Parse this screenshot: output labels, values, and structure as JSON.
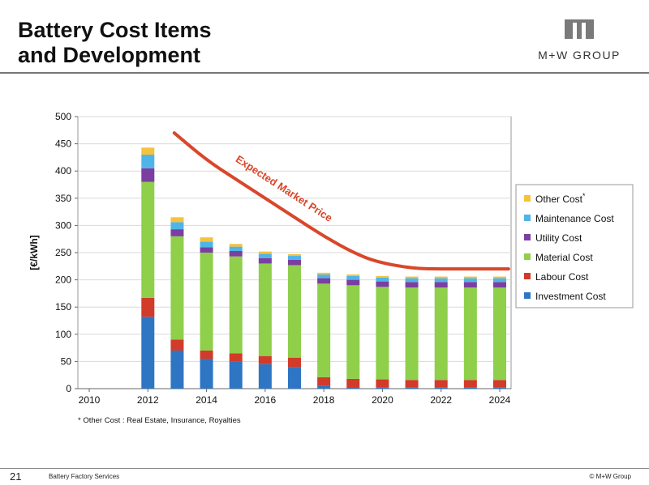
{
  "slide": {
    "title_line1": "Battery Cost Items",
    "title_line2": "and Development",
    "logo_text": "M+W GROUP",
    "footnote": "* Other Cost : Real Estate, Insurance, Royalties",
    "page_number": "21",
    "footer_left": "Battery Factory Services",
    "footer_right": "© M+W Group"
  },
  "chart_data": {
    "type": "bar",
    "stacked": true,
    "ylabel": "[€/kWh]",
    "xlabel": "",
    "ylim": [
      0,
      500
    ],
    "yticks": [
      0,
      50,
      100,
      150,
      200,
      250,
      300,
      350,
      400,
      450,
      500
    ],
    "xlim": [
      2010,
      2024
    ],
    "xticks": [
      2010,
      2012,
      2014,
      2016,
      2018,
      2020,
      2022,
      2024
    ],
    "grid": true,
    "legend_position": "right",
    "x": [
      2012,
      2013,
      2014,
      2015,
      2016,
      2017,
      2018,
      2019,
      2020,
      2021,
      2022,
      2023,
      2024
    ],
    "series": [
      {
        "name": "Investment Cost",
        "color": "#2e75c4",
        "values": [
          132,
          70,
          55,
          50,
          45,
          40,
          5,
          3,
          2,
          2,
          2,
          2,
          2
        ]
      },
      {
        "name": "Labour Cost",
        "color": "#d23a2a",
        "values": [
          35,
          20,
          15,
          15,
          15,
          17,
          16,
          15,
          15,
          14,
          14,
          14,
          14
        ]
      },
      {
        "name": "Material Cost",
        "color": "#8fcf4a",
        "values": [
          213,
          190,
          180,
          178,
          170,
          170,
          172,
          172,
          170,
          170,
          170,
          170,
          170
        ]
      },
      {
        "name": "Utility Cost",
        "color": "#7a3fa0",
        "values": [
          25,
          13,
          10,
          10,
          10,
          10,
          10,
          10,
          10,
          10,
          10,
          10,
          10
        ]
      },
      {
        "name": "Maintenance Cost",
        "color": "#4fb5e8",
        "values": [
          25,
          13,
          10,
          8,
          8,
          7,
          7,
          7,
          7,
          7,
          7,
          7,
          7
        ]
      },
      {
        "name": "Other Cost",
        "color": "#f4c23c",
        "values": [
          13,
          9,
          8,
          5,
          4,
          3,
          3,
          3,
          3,
          3,
          3,
          3,
          3
        ]
      }
    ],
    "legend_order": [
      "Other Cost",
      "Maintenance Cost",
      "Utility Cost",
      "Material Cost",
      "Labour Cost",
      "Investment Cost"
    ],
    "legend_suffix": {
      "Other Cost": "*"
    },
    "market_price": {
      "label": "Expected Market Price",
      "color": "#d9472b",
      "x": [
        2012.9,
        2014,
        2015,
        2016,
        2017,
        2018,
        2019,
        2019.8,
        2021,
        2022,
        2023,
        2024.3
      ],
      "values": [
        470,
        420,
        385,
        350,
        315,
        280,
        250,
        233,
        221,
        220,
        220,
        220
      ]
    }
  }
}
